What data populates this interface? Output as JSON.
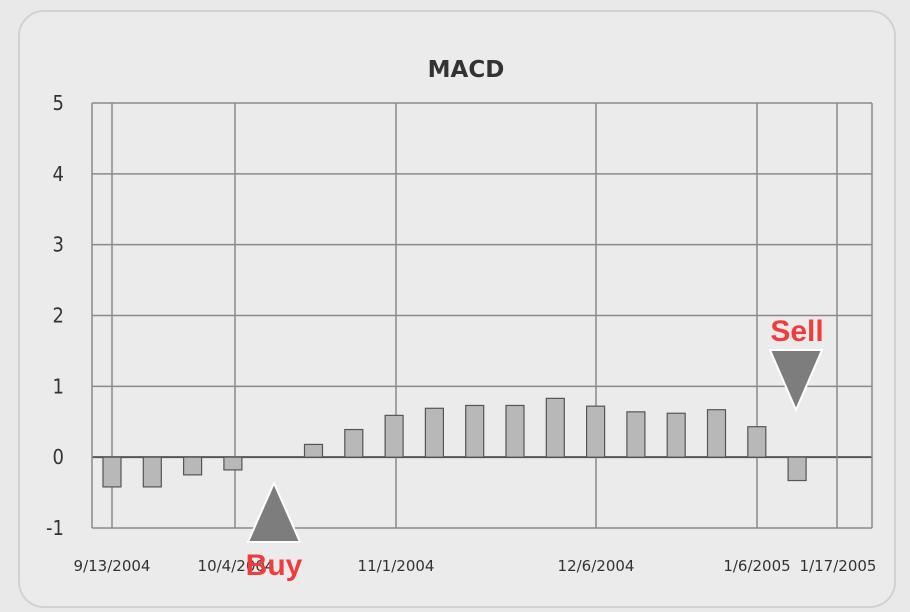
{
  "chart_data": {
    "type": "bar",
    "title": "MACD",
    "xlabel": "",
    "ylabel": "",
    "ylim": [
      -1,
      5
    ],
    "yticks": [
      -1,
      0,
      1,
      2,
      3,
      4,
      5
    ],
    "grid": true,
    "x_tick_labels": [
      "9/13/2004",
      "10/4/2004",
      "11/1/2004",
      "12/6/2004",
      "1/6/2005",
      "1/17/2005"
    ],
    "series": [
      {
        "values": [
          -0.42,
          -0.42,
          -0.25,
          -0.18,
          0.18,
          0.39,
          0.59,
          0.69,
          0.73,
          0.73,
          0.83,
          0.72,
          0.64,
          0.62,
          0.67,
          0.43,
          -0.33
        ]
      }
    ],
    "annotations": [
      {
        "text": "Buy",
        "marker": "triangle-up",
        "color": "#f03c3c"
      },
      {
        "text": "Sell",
        "marker": "triangle-down",
        "color": "#f03c3c"
      }
    ],
    "colors": {
      "bar_fill": "#b8b8b8",
      "bar_stroke": "#555555",
      "grid": "#8a8a8a",
      "annotation": "#f03c3c",
      "marker": "#7d7d7d"
    }
  }
}
